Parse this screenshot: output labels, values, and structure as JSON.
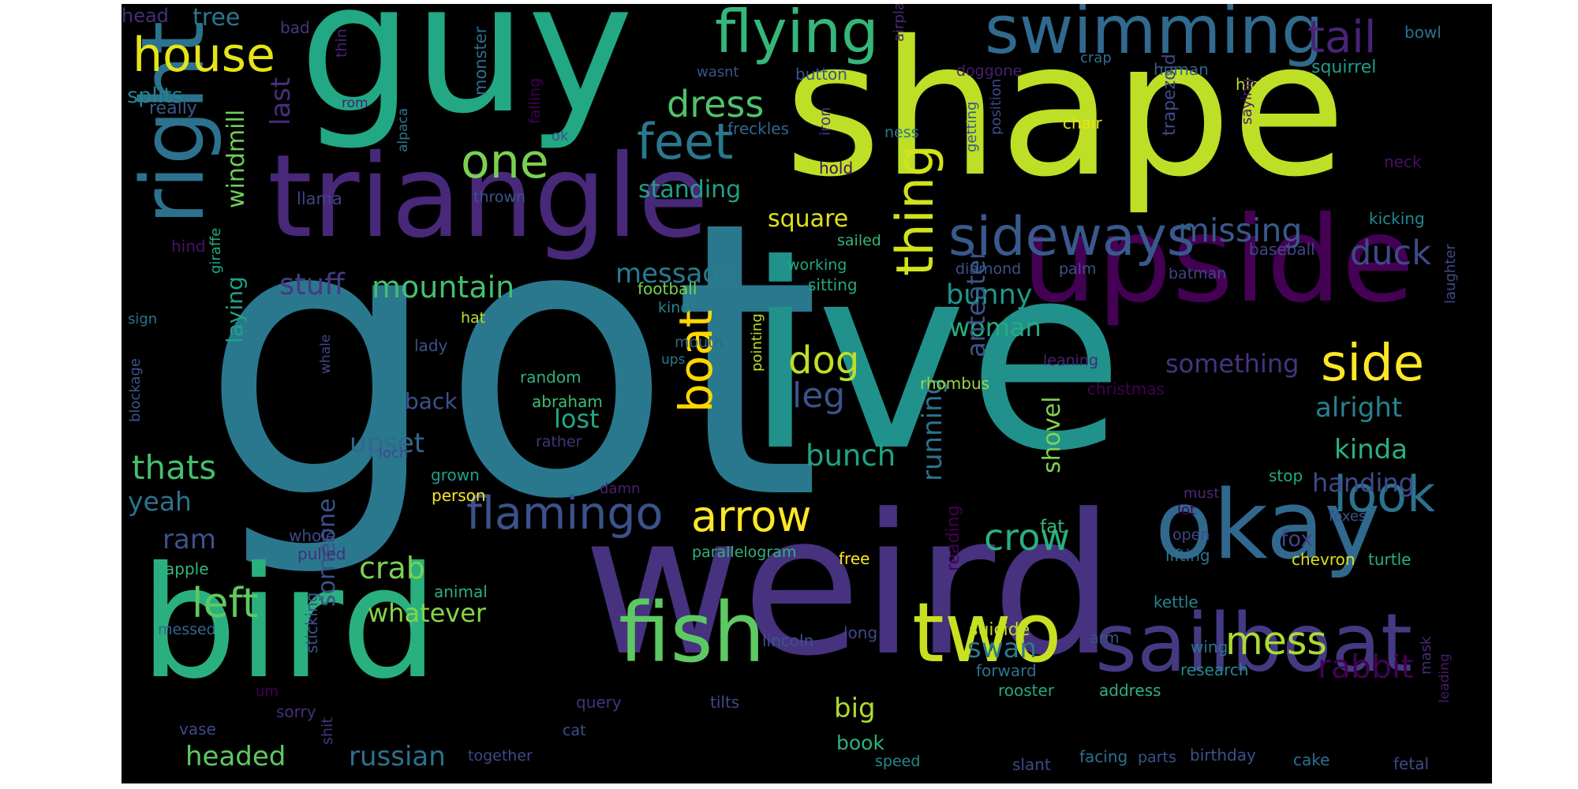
{
  "cloud": {
    "words": [
      {
        "id": "got",
        "text": "got",
        "color": "#2a788e"
      },
      {
        "id": "ive",
        "text": "ive",
        "color": "#21918c"
      },
      {
        "id": "shape",
        "text": "shape",
        "color": "#bddf26"
      },
      {
        "id": "weird",
        "text": "weird",
        "color": "#46327e"
      },
      {
        "id": "guy",
        "text": "guy",
        "color": "#22a884"
      },
      {
        "id": "bird",
        "text": "bird",
        "color": "#2ab07f"
      },
      {
        "id": "upside",
        "text": "upside",
        "color": "#440154"
      },
      {
        "id": "triangle",
        "text": "triangle",
        "color": "#482878"
      },
      {
        "id": "okay",
        "text": "okay",
        "color": "#31688e"
      },
      {
        "id": "right",
        "text": "right",
        "color": "#2c728e"
      },
      {
        "id": "sailboat",
        "text": "sailboat",
        "color": "#443a83"
      },
      {
        "id": "fish",
        "text": "fish",
        "color": "#5ec962"
      },
      {
        "id": "two",
        "text": "two",
        "color": "#c8e020"
      },
      {
        "id": "swimming",
        "text": "swimming",
        "color": "#306a8e"
      },
      {
        "id": "flying",
        "text": "flying",
        "color": "#35b779"
      },
      {
        "id": "sideways",
        "text": "sideways",
        "color": "#38598c"
      },
      {
        "id": "thing",
        "text": "thing",
        "color": "#d2e21b"
      },
      {
        "id": "house",
        "text": "house",
        "color": "#e5e419"
      },
      {
        "id": "feet",
        "text": "feet",
        "color": "#2a788e"
      },
      {
        "id": "boat",
        "text": "boat",
        "color": "#ffd700"
      },
      {
        "id": "one",
        "text": "one",
        "color": "#7ad151"
      },
      {
        "id": "flamingo",
        "text": "flamingo",
        "color": "#3b528b"
      },
      {
        "id": "arrow",
        "text": "arrow",
        "color": "#fde725"
      },
      {
        "id": "look",
        "text": "look",
        "color": "#2c728e"
      },
      {
        "id": "side",
        "text": "side",
        "color": "#fde725"
      },
      {
        "id": "tail",
        "text": "tail",
        "color": "#482475"
      },
      {
        "id": "dress",
        "text": "dress",
        "color": "#4ec36b"
      },
      {
        "id": "missing",
        "text": "missing",
        "color": "#38598c"
      },
      {
        "id": "duck",
        "text": "duck",
        "color": "#3e4a89"
      },
      {
        "id": "mess",
        "text": "mess",
        "color": "#aadc32"
      },
      {
        "id": "rabbit",
        "text": "rabbit",
        "color": "#440154"
      },
      {
        "id": "crow",
        "text": "crow",
        "color": "#2ab07f"
      },
      {
        "id": "mountain",
        "text": "mountain",
        "color": "#44bf70"
      },
      {
        "id": "stuff",
        "text": "stuff",
        "color": "#443983"
      },
      {
        "id": "windmill",
        "text": "windmill",
        "color": "#6ece58"
      },
      {
        "id": "left",
        "text": "left",
        "color": "#5ec962"
      },
      {
        "id": "thats",
        "text": "thats",
        "color": "#44bf70"
      },
      {
        "id": "yeah",
        "text": "yeah",
        "color": "#2c728e"
      },
      {
        "id": "running",
        "text": "running",
        "color": "#2c728e"
      },
      {
        "id": "dog",
        "text": "dog",
        "color": "#bddf26"
      },
      {
        "id": "leg",
        "text": "leg",
        "color": "#3b528b"
      },
      {
        "id": "bunch",
        "text": "bunch",
        "color": "#20a486"
      },
      {
        "id": "upset",
        "text": "upset",
        "color": "#31688e"
      },
      {
        "id": "kinda",
        "text": "kinda",
        "color": "#2ab07f"
      },
      {
        "id": "handing",
        "text": "handing",
        "color": "#3e4a89"
      },
      {
        "id": "alright",
        "text": "alright",
        "color": "#26828e"
      },
      {
        "id": "something",
        "text": "something",
        "color": "#46337f"
      },
      {
        "id": "woman",
        "text": "woman",
        "color": "#25ac82"
      },
      {
        "id": "bunny",
        "text": "bunny",
        "color": "#1f988b"
      },
      {
        "id": "message",
        "text": "message",
        "color": "#287c8e"
      },
      {
        "id": "square",
        "text": "square",
        "color": "#dde318"
      },
      {
        "id": "standing",
        "text": "standing",
        "color": "#1fa187"
      },
      {
        "id": "anteater",
        "text": "anteater",
        "color": "#39568c"
      },
      {
        "id": "shovel",
        "text": "shovel",
        "color": "#7fd34e"
      },
      {
        "id": "crab",
        "text": "crab",
        "color": "#7ad151"
      },
      {
        "id": "ram",
        "text": "ram",
        "color": "#3b528b"
      },
      {
        "id": "whatever",
        "text": "whatever",
        "color": "#86d549"
      },
      {
        "id": "someone",
        "text": "someone",
        "color": "#3b528b"
      },
      {
        "id": "swan",
        "text": "swan",
        "color": "#29798e"
      },
      {
        "id": "russian",
        "text": "russian",
        "color": "#2c728e"
      },
      {
        "id": "headed",
        "text": "headed",
        "color": "#5ec962"
      },
      {
        "id": "big",
        "text": "big",
        "color": "#addc30"
      },
      {
        "id": "book",
        "text": "book",
        "color": "#2db27d"
      },
      {
        "id": "fox",
        "text": "fox",
        "color": "#414487"
      },
      {
        "id": "fat",
        "text": "fat",
        "color": "#35b779"
      },
      {
        "id": "laying",
        "text": "laying",
        "color": "#1fa188"
      },
      {
        "id": "last",
        "text": "last",
        "color": "#472f7d"
      },
      {
        "id": "lost",
        "text": "lost",
        "color": "#22a884"
      },
      {
        "id": "back",
        "text": "back",
        "color": "#3b528b"
      },
      {
        "id": "monster",
        "text": "monster",
        "color": "#2e6e8e"
      },
      {
        "id": "trapezoid",
        "text": "trapezoid",
        "color": "#3e4a89"
      },
      {
        "id": "tree",
        "text": "tree",
        "color": "#2a788e"
      },
      {
        "id": "head",
        "text": "head",
        "color": "#472d7b"
      },
      {
        "id": "splits",
        "text": "splits",
        "color": "#26828e"
      },
      {
        "id": "really",
        "text": "really",
        "color": "#38598c"
      },
      {
        "id": "bad",
        "text": "bad",
        "color": "#453781"
      },
      {
        "id": "thin",
        "text": "thin",
        "color": "#482374"
      },
      {
        "id": "wasnt",
        "text": "wasnt",
        "color": "#3b528b"
      },
      {
        "id": "button",
        "text": "button",
        "color": "#39568c"
      },
      {
        "id": "airplane",
        "text": "airplane",
        "color": "#472a7a"
      },
      {
        "id": "doggone",
        "text": "doggone",
        "color": "#481f70"
      },
      {
        "id": "crap",
        "text": "crap",
        "color": "#2c728e"
      },
      {
        "id": "human",
        "text": "human",
        "color": "#33638d"
      },
      {
        "id": "bowl",
        "text": "bowl",
        "color": "#2c718e"
      },
      {
        "id": "squirrel",
        "text": "squirrel",
        "color": "#1f9e89"
      },
      {
        "id": "high",
        "text": "high",
        "color": "#bddf26"
      },
      {
        "id": "rom",
        "text": "rom",
        "color": "#482071"
      },
      {
        "id": "freckles",
        "text": "freckles",
        "color": "#32658e"
      },
      {
        "id": "iron",
        "text": "iron",
        "color": "#46307e"
      },
      {
        "id": "ness",
        "text": "ness",
        "color": "#2a788e"
      },
      {
        "id": "chair",
        "text": "chair",
        "color": "#e7e419"
      },
      {
        "id": "saying",
        "text": "saying",
        "color": "#48186a"
      },
      {
        "id": "neck",
        "text": "neck",
        "color": "#471063"
      },
      {
        "id": "ok",
        "text": "ok",
        "color": "#3b528b"
      },
      {
        "id": "falling",
        "text": "falling",
        "color": "#440154"
      },
      {
        "id": "hold",
        "text": "hold",
        "color": "#460a5d"
      },
      {
        "id": "getting",
        "text": "getting",
        "color": "#38598c"
      },
      {
        "id": "position",
        "text": "position",
        "color": "#3e4989"
      },
      {
        "id": "kicking",
        "text": "kicking",
        "color": "#23898e"
      },
      {
        "id": "llama",
        "text": "llama",
        "color": "#414487"
      },
      {
        "id": "alpaca",
        "text": "alpaca",
        "color": "#2a788e"
      },
      {
        "id": "thrown",
        "text": "thrown",
        "color": "#3a548c"
      },
      {
        "id": "hind",
        "text": "hind",
        "color": "#471365"
      },
      {
        "id": "giraffe",
        "text": "giraffe",
        "color": "#22a884"
      },
      {
        "id": "sailed",
        "text": "sailed",
        "color": "#35b779"
      },
      {
        "id": "diamond",
        "text": "diamond",
        "color": "#3a548c"
      },
      {
        "id": "working",
        "text": "working",
        "color": "#22a884"
      },
      {
        "id": "sitting",
        "text": "sitting",
        "color": "#22a884"
      },
      {
        "id": "palm",
        "text": "palm",
        "color": "#3b528b"
      },
      {
        "id": "batman",
        "text": "batman",
        "color": "#414487"
      },
      {
        "id": "baseball",
        "text": "baseball",
        "color": "#3f4788"
      },
      {
        "id": "football",
        "text": "football",
        "color": "#7ad151"
      },
      {
        "id": "kind",
        "text": "kind",
        "color": "#25858e"
      },
      {
        "id": "sign",
        "text": "sign",
        "color": "#2c728e"
      },
      {
        "id": "hat",
        "text": "hat",
        "color": "#c2df23"
      },
      {
        "id": "mouth",
        "text": "mouth",
        "color": "#32658e"
      },
      {
        "id": "lady",
        "text": "lady",
        "color": "#3b528b"
      },
      {
        "id": "ups",
        "text": "ups",
        "color": "#2a788e"
      },
      {
        "id": "laughter",
        "text": "laughter",
        "color": "#3e4a89"
      },
      {
        "id": "leaning",
        "text": "leaning",
        "color": "#482576"
      },
      {
        "id": "whale",
        "text": "whale",
        "color": "#404688"
      },
      {
        "id": "random",
        "text": "random",
        "color": "#2db27d"
      },
      {
        "id": "abraham",
        "text": "abraham",
        "color": "#40bd72"
      },
      {
        "id": "christmas",
        "text": "christmas",
        "color": "#440154"
      },
      {
        "id": "rhombus",
        "text": "rhombus",
        "color": "#9bd93c"
      },
      {
        "id": "pointing",
        "text": "pointing",
        "color": "#bddf26"
      },
      {
        "id": "blockage",
        "text": "blockage",
        "color": "#3b528b"
      },
      {
        "id": "loch",
        "text": "loch",
        "color": "#3e4a89"
      },
      {
        "id": "rather",
        "text": "rather",
        "color": "#46327e"
      },
      {
        "id": "grown",
        "text": "grown",
        "color": "#1fa187"
      },
      {
        "id": "stop",
        "text": "stop",
        "color": "#22a884"
      },
      {
        "id": "person",
        "text": "person",
        "color": "#fde725"
      },
      {
        "id": "damn",
        "text": "damn",
        "color": "#482173"
      },
      {
        "id": "must",
        "text": "must",
        "color": "#482878"
      },
      {
        "id": "lot",
        "text": "lot",
        "color": "#440154"
      },
      {
        "id": "foxes",
        "text": "foxes",
        "color": "#3b528b"
      },
      {
        "id": "whole",
        "text": "whole",
        "color": "#3e4a89"
      },
      {
        "id": "pulled",
        "text": "pulled",
        "color": "#472c7a"
      },
      {
        "id": "open",
        "text": "open",
        "color": "#3e4a89"
      },
      {
        "id": "apple",
        "text": "apple",
        "color": "#35b779"
      },
      {
        "id": "parallelogram",
        "text": "parallelogram",
        "color": "#2eb37c"
      },
      {
        "id": "free",
        "text": "free",
        "color": "#fde725"
      },
      {
        "id": "lifting",
        "text": "lifting",
        "color": "#2c728e"
      },
      {
        "id": "chevron",
        "text": "chevron",
        "color": "#d8e219"
      },
      {
        "id": "turtle",
        "text": "turtle",
        "color": "#29af7f"
      },
      {
        "id": "animal",
        "text": "animal",
        "color": "#2ab07f"
      },
      {
        "id": "reading",
        "text": "reading",
        "color": "#440154"
      },
      {
        "id": "kettle",
        "text": "kettle",
        "color": "#25858e"
      },
      {
        "id": "suicide",
        "text": "suicide",
        "color": "#bddf26"
      },
      {
        "id": "arm",
        "text": "arm",
        "color": "#3b528b"
      },
      {
        "id": "messed",
        "text": "messed",
        "color": "#31688e"
      },
      {
        "id": "sticking",
        "text": "sticking",
        "color": "#3b528b"
      },
      {
        "id": "lincoln",
        "text": "lincoln",
        "color": "#3b528b"
      },
      {
        "id": "long",
        "text": "long",
        "color": "#3e4a89"
      },
      {
        "id": "wing",
        "text": "wing",
        "color": "#2c728e"
      },
      {
        "id": "mask",
        "text": "mask",
        "color": "#472c7a"
      },
      {
        "id": "leading",
        "text": "leading",
        "color": "#481a6c"
      },
      {
        "id": "forward",
        "text": "forward",
        "color": "#2c728e"
      },
      {
        "id": "research",
        "text": "research",
        "color": "#238a8d"
      },
      {
        "id": "um",
        "text": "um",
        "color": "#440154"
      },
      {
        "id": "sorry",
        "text": "sorry",
        "color": "#46307e"
      },
      {
        "id": "query",
        "text": "query",
        "color": "#46327e"
      },
      {
        "id": "tilts",
        "text": "tilts",
        "color": "#3e4a89"
      },
      {
        "id": "rooster",
        "text": "rooster",
        "color": "#22a884"
      },
      {
        "id": "address",
        "text": "address",
        "color": "#2db27d"
      },
      {
        "id": "vase",
        "text": "vase",
        "color": "#3e4a89"
      },
      {
        "id": "shit",
        "text": "shit",
        "color": "#46327e"
      },
      {
        "id": "cat",
        "text": "cat",
        "color": "#3b528b"
      },
      {
        "id": "together",
        "text": "together",
        "color": "#3e4a89"
      },
      {
        "id": "speed",
        "text": "speed",
        "color": "#238a8d"
      },
      {
        "id": "slant",
        "text": "slant",
        "color": "#3e4a89"
      },
      {
        "id": "facing",
        "text": "facing",
        "color": "#2c728e"
      },
      {
        "id": "parts",
        "text": "parts",
        "color": "#3b528b"
      },
      {
        "id": "birthday",
        "text": "birthday",
        "color": "#3b528b"
      },
      {
        "id": "cake",
        "text": "cake",
        "color": "#2c728e"
      },
      {
        "id": "fetal",
        "text": "fetal",
        "color": "#3e4a89"
      }
    ]
  }
}
